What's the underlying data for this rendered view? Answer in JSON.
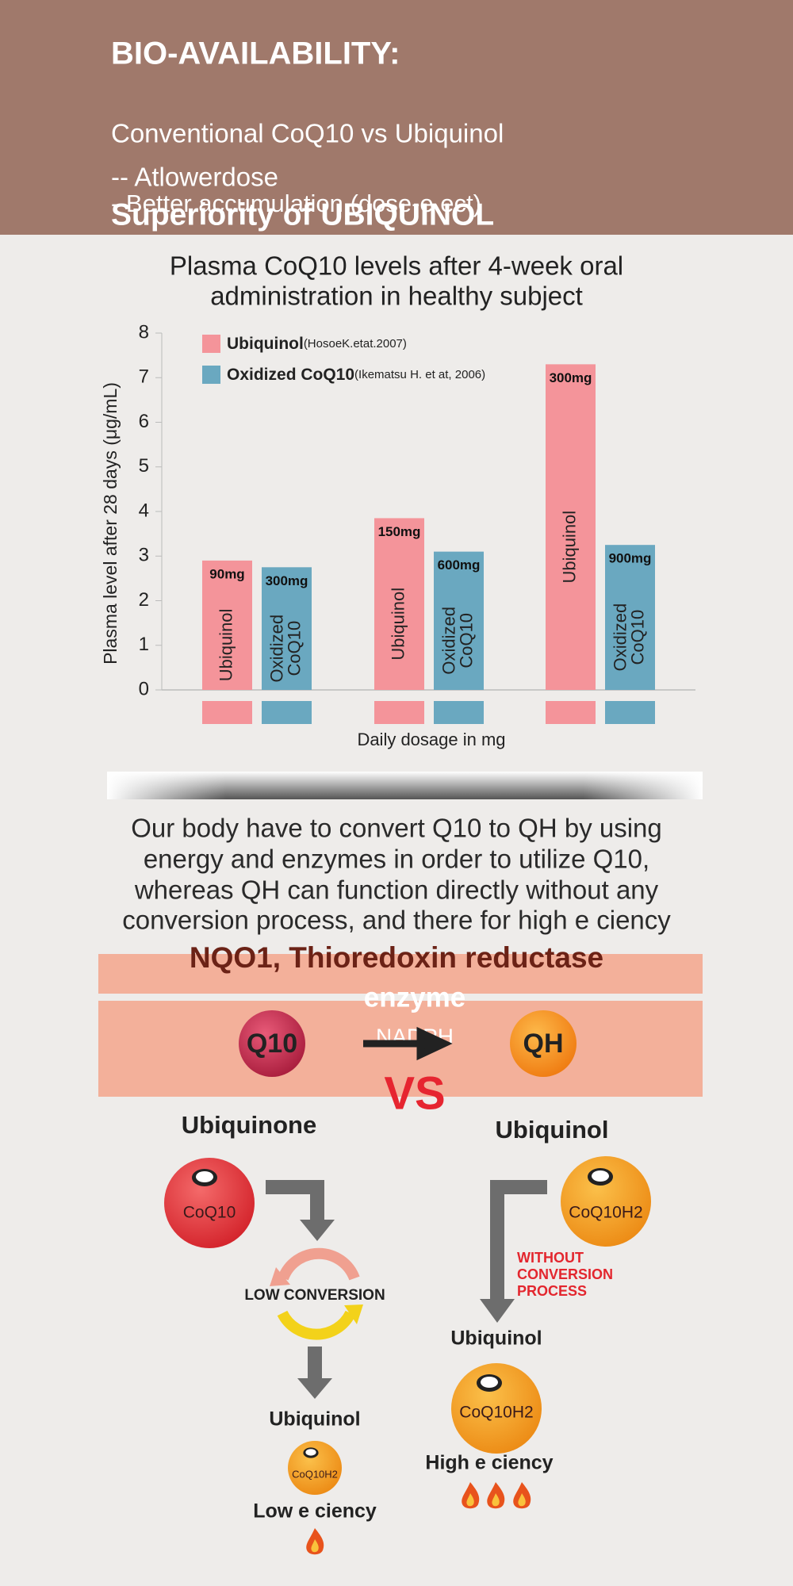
{
  "header": {
    "title": "BIO-AVAILABILITY:",
    "subtitle": "Conventional CoQ10 vs Ubiquinol",
    "points": [
      "-- Atlowerdose",
      "- Better accumulation (dose-e ect)"
    ],
    "heading": "Superiority of UBIQUINOL"
  },
  "chart_data": {
    "type": "bar",
    "title": [
      "Plasma CoQ10 levels after 4-week oral",
      "administration in healthy subject"
    ],
    "y_label": "Plasma level after 28 days (μg/mL)",
    "x_label": "Daily dosage in mg",
    "categories": [
      null,
      null,
      null
    ],
    "series": [
      {
        "name": "Ubiquinol",
        "citation": "(HosoeK.etat.2007)",
        "color": "#f4949a",
        "values": [
          2.9,
          3.85,
          7.3
        ],
        "dose_labels": [
          "90mg",
          "150mg",
          "300mg"
        ],
        "bar_label": [
          "Ubiquinol"
        ]
      },
      {
        "name": "Oxidized CoQ10",
        "citation": "(Ikematsu H. et at, 2006)",
        "color": "#6aa8c0",
        "values": [
          2.75,
          3.1,
          3.25
        ],
        "dose_labels": [
          "300mg",
          "600mg",
          "900mg"
        ],
        "bar_label": [
          "Oxidized",
          "CoQ10"
        ]
      }
    ],
    "ylim": [
      0,
      8
    ],
    "yticks": [
      0,
      1,
      2,
      3,
      4,
      5,
      6,
      7,
      8
    ]
  },
  "conversion": {
    "text": [
      "Our body have to convert Q10 to QH by using",
      "energy and enzymes in order to utilize Q10,",
      "whereas QH can function directly without any",
      "conversion process, and there for high e ciency"
    ],
    "enzyme_band": "NQO1, Thioredoxin reductase",
    "enzyme": "enzyme",
    "cofactor": "NADPH",
    "from": "Q10",
    "to": "QH",
    "vs": "VS"
  },
  "comparison": {
    "left": {
      "title": "Ubiquinone",
      "molecule": "CoQ10",
      "process": "LOW CONVERSION",
      "result": "Ubiquinol",
      "result_molecule": "CoQ10H2",
      "efficiency": "Low e ciency"
    },
    "right": {
      "title": "Ubiquinol",
      "molecule": "CoQ10H2",
      "note": [
        "WITHOUT",
        "CONVERSION",
        "PROCESS"
      ],
      "result": "Ubiquinol",
      "result_molecule": "CoQ10H2",
      "efficiency": "High e ciency"
    }
  }
}
